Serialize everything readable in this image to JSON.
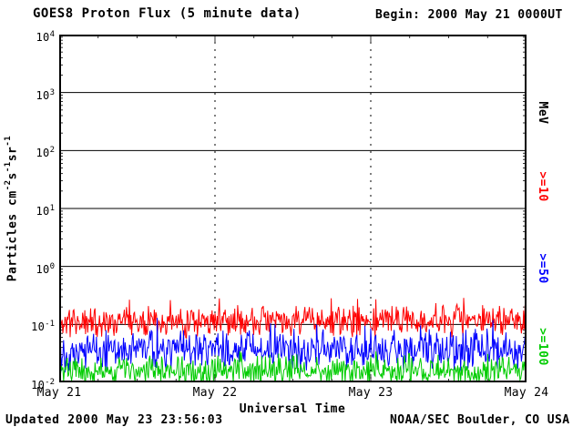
{
  "chart_data": {
    "type": "line",
    "title": "GOES8 Proton Flux (5 minute data)",
    "begin_label": "Begin: 2000 May 21 0000UT",
    "xlabel": "Universal Time",
    "ylabel_text": "Particles cm-2 s-1 sr-1",
    "ylabel_parts": {
      "t0": "Particles cm",
      "e0": "-2",
      "t1": "s",
      "e1": "-1",
      "t2": "sr",
      "e2": "-1"
    },
    "y_scale": "log",
    "ylim": [
      0.01,
      10000
    ],
    "y_log_range": [
      -2,
      4
    ],
    "y_ticks": [
      {
        "base": "10",
        "exp": "4"
      },
      {
        "base": "10",
        "exp": "3"
      },
      {
        "base": "10",
        "exp": "2"
      },
      {
        "base": "10",
        "exp": "1"
      },
      {
        "base": "10",
        "exp": "0"
      },
      {
        "base": "10",
        "exp": "-1"
      },
      {
        "base": "10",
        "exp": "-2"
      }
    ],
    "x_ticks": [
      "May 21",
      "May 22",
      "May 23",
      "May 24"
    ],
    "x_span_days": 3,
    "grid": {
      "horizontal_solid_at_decades": true,
      "vertical_dashed_at": [
        "May 22",
        "May 23"
      ]
    },
    "right_axis_labels": [
      {
        "text": "MeV",
        "color": "#000000"
      },
      {
        "text": ">=10",
        "color": "#ff0000"
      },
      {
        "text": ">=50",
        "color": "#0000ff"
      },
      {
        "text": ">=100",
        "color": "#00cc00"
      }
    ],
    "points_per_series": 640,
    "series": [
      {
        "name": ">=10 MeV",
        "color": "#ff0000",
        "center_log10": -0.95,
        "amp_log10": 0.3,
        "spike_log10": 0.35,
        "spike_prob": 0.08,
        "seed": 11,
        "approx_flux_range": [
          0.05,
          0.4
        ]
      },
      {
        "name": ">=50 MeV",
        "color": "#0000ff",
        "center_log10": -1.45,
        "amp_log10": 0.4,
        "spike_log10": 0.3,
        "spike_prob": 0.05,
        "seed": 22,
        "approx_flux_range": [
          0.01,
          0.13
        ]
      },
      {
        "name": ">=100 MeV",
        "color": "#00cc00",
        "center_log10": -1.8,
        "amp_log10": 0.3,
        "spike_log10": 0.2,
        "spike_prob": 0.05,
        "seed": 33,
        "approx_flux_range": [
          0.01,
          0.045
        ]
      }
    ]
  },
  "footer": {
    "updated": "Updated 2000 May 23 23:56:03",
    "source": "NOAA/SEC Boulder, CO USA"
  }
}
